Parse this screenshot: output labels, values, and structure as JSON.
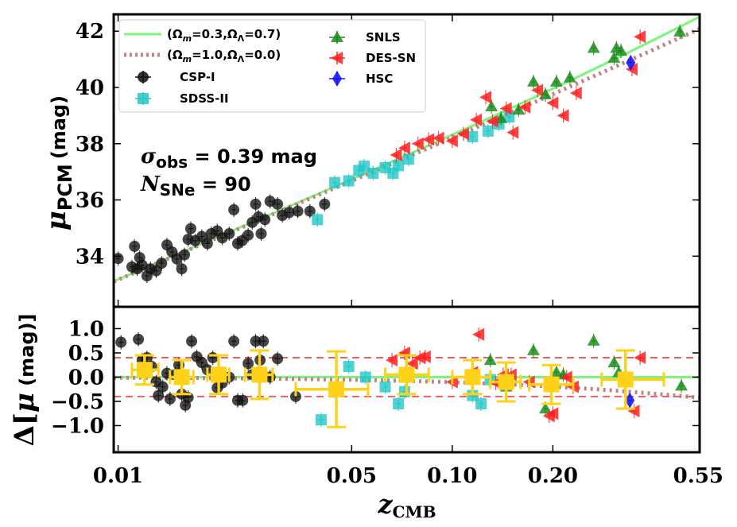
{
  "chart_data": [
    {
      "type": "scatter",
      "panel": "top",
      "title": "",
      "xlabel_main": "z",
      "xlabel_sub": "CMB",
      "ylabel_main": "μ",
      "ylabel_sub": "PCM",
      "ylabel_unit": "(mag)",
      "xscale": "log",
      "xlim": [
        0.0097,
        0.55
      ],
      "ylim": [
        32.2,
        42.6
      ],
      "yticks": [
        34,
        36,
        38,
        40,
        42
      ],
      "ytick_labels": [
        "34",
        "36",
        "38",
        "40",
        "42"
      ],
      "annotations": {
        "sigma_symbol": "σ",
        "sigma_sub": "obs",
        "sigma_rest": " = 0.39 mag",
        "n_symbol": "N",
        "n_sub": "SNe",
        "n_rest": " = 90"
      },
      "legend_placement": "top-left",
      "legend": [
        {
          "key": "lcdm",
          "label": "(Ωm=0.3,ΩΛ=0.7)",
          "main1": "(Ω",
          "sub1": "m",
          "mid": "=0.3,Ω",
          "sub2": "Λ",
          "end": "=0.7)",
          "color": "#7cf57c",
          "style": "line"
        },
        {
          "key": "eds",
          "label": "(Ωm=1.0,ΩΛ=0.0)",
          "main1": "(Ω",
          "sub1": "m",
          "mid": "=1.0,Ω",
          "sub2": "Λ",
          "end": "=0.0)",
          "color": "#c48282",
          "style": "dotted"
        },
        {
          "key": "csp",
          "label": "CSP-I",
          "color": "#111111",
          "marker": "circle"
        },
        {
          "key": "sdss",
          "label": "SDSS-II",
          "color": "#22c7c7",
          "marker": "square"
        },
        {
          "key": "snls",
          "label": "SNLS",
          "color": "#1a8a1a",
          "marker": "triangle"
        },
        {
          "key": "des",
          "label": "DES-SN",
          "color": "#ff2020",
          "marker": "left-triangle"
        },
        {
          "key": "hsc",
          "label": "HSC",
          "color": "#1a1aee",
          "marker": "diamond"
        }
      ],
      "series": [
        {
          "name": "CSP-I",
          "key": "csp",
          "points": [
            [
              0.01,
              33.92
            ],
            [
              0.011,
              33.62
            ],
            [
              0.0112,
              34.35
            ],
            [
              0.0114,
              33.55
            ],
            [
              0.0116,
              33.95
            ],
            [
              0.0118,
              33.68
            ],
            [
              0.0122,
              33.3
            ],
            [
              0.0125,
              33.55
            ],
            [
              0.013,
              33.48
            ],
            [
              0.0135,
              33.75
            ],
            [
              0.014,
              34.4
            ],
            [
              0.0145,
              34.15
            ],
            [
              0.015,
              33.9
            ],
            [
              0.0155,
              33.55
            ],
            [
              0.0158,
              34.05
            ],
            [
              0.0162,
              34.6
            ],
            [
              0.0165,
              34.98
            ],
            [
              0.017,
              34.55
            ],
            [
              0.0178,
              34.7
            ],
            [
              0.0185,
              34.45
            ],
            [
              0.019,
              34.8
            ],
            [
              0.0198,
              34.9
            ],
            [
              0.0205,
              34.65
            ],
            [
              0.0215,
              34.8
            ],
            [
              0.0222,
              35.65
            ],
            [
              0.0228,
              34.45
            ],
            [
              0.0235,
              34.55
            ],
            [
              0.0245,
              34.75
            ],
            [
              0.0252,
              35.2
            ],
            [
              0.0258,
              35.85
            ],
            [
              0.0263,
              35.4
            ],
            [
              0.0268,
              34.8
            ],
            [
              0.0275,
              35.3
            ],
            [
              0.0285,
              35.95
            ],
            [
              0.03,
              35.85
            ],
            [
              0.031,
              35.45
            ],
            [
              0.0325,
              35.55
            ],
            [
              0.0345,
              35.6
            ],
            [
              0.0375,
              35.6
            ],
            [
              0.0415,
              35.85
            ]
          ]
        },
        {
          "name": "SDSS-II",
          "key": "sdss",
          "points": [
            [
              0.0395,
              35.3
            ],
            [
              0.0445,
              36.62
            ],
            [
              0.049,
              36.68
            ],
            [
              0.0525,
              37.05
            ],
            [
              0.0545,
              37.2
            ],
            [
              0.058,
              36.95
            ],
            [
              0.063,
              37.15
            ],
            [
              0.0665,
              36.95
            ],
            [
              0.069,
              37.22
            ],
            [
              0.074,
              37.45
            ],
            [
              0.115,
              38.25
            ],
            [
              0.128,
              38.45
            ],
            [
              0.138,
              38.7
            ],
            [
              0.148,
              38.95
            ]
          ]
        },
        {
          "name": "SNLS",
          "key": "snls",
          "points": [
            [
              0.131,
              39.32
            ],
            [
              0.14,
              38.9
            ],
            [
              0.158,
              39.2
            ],
            [
              0.175,
              40.2
            ],
            [
              0.19,
              39.75
            ],
            [
              0.205,
              40.2
            ],
            [
              0.225,
              40.35
            ],
            [
              0.265,
              41.4
            ],
            [
              0.305,
              41.05
            ],
            [
              0.31,
              41.4
            ],
            [
              0.32,
              41.3
            ],
            [
              0.48,
              41.98
            ]
          ]
        },
        {
          "name": "DES-SN",
          "key": "des",
          "points": [
            [
              0.068,
              37.6
            ],
            [
              0.072,
              37.85
            ],
            [
              0.079,
              38.0
            ],
            [
              0.085,
              38.15
            ],
            [
              0.091,
              38.2
            ],
            [
              0.1,
              38.1
            ],
            [
              0.108,
              38.35
            ],
            [
              0.118,
              38.85
            ],
            [
              0.126,
              39.65
            ],
            [
              0.132,
              38.8
            ],
            [
              0.145,
              39.25
            ],
            [
              0.152,
              38.4
            ],
            [
              0.165,
              39.3
            ],
            [
              0.18,
              39.9
            ],
            [
              0.2,
              39.45
            ],
            [
              0.215,
              39.0
            ],
            [
              0.235,
              39.8
            ],
            [
              0.345,
              40.65
            ],
            [
              0.365,
              41.8
            ]
          ]
        },
        {
          "name": "HSC",
          "key": "hsc",
          "points": [
            [
              0.342,
              40.88
            ]
          ]
        }
      ],
      "models": [
        {
          "key": "lcdm",
          "omega_m": 0.3,
          "omega_l": 0.7
        },
        {
          "key": "eds",
          "omega_m": 1.0,
          "omega_l": 0.0
        }
      ]
    },
    {
      "type": "scatter",
      "panel": "bottom",
      "ylabel_delta": "Δ[",
      "ylabel_mu": "μ",
      "ylabel_unit": " (mag)]",
      "xscale": "log",
      "xlim": [
        0.0097,
        0.55
      ],
      "ylim": [
        -1.55,
        1.45
      ],
      "yticks": [
        -1.0,
        -0.5,
        0.0,
        0.5,
        1.0
      ],
      "ytick_labels": [
        "−1.0",
        "−0.5",
        "0.0",
        "0.5",
        "1.0"
      ],
      "xticks": [
        0.01,
        0.05,
        0.1,
        0.2,
        0.55
      ],
      "xtick_labels": [
        "0.01",
        "0.05",
        "0.10",
        "0.20",
        "0.55"
      ],
      "threshold_lines": [
        0.4,
        -0.4
      ],
      "threshold_color": "#f06060",
      "series": [
        {
          "name": "CSP-I",
          "key": "csp",
          "points": [
            [
              0.0102,
              0.72
            ],
            [
              0.0115,
              0.78
            ],
            [
              0.0118,
              0.35
            ],
            [
              0.0122,
              0.4
            ],
            [
              0.0126,
              0.22
            ],
            [
              0.013,
              -0.1
            ],
            [
              0.0132,
              -0.38
            ],
            [
              0.0136,
              -0.2
            ],
            [
              0.014,
              0.08
            ],
            [
              0.0143,
              -0.45
            ],
            [
              0.0148,
              0.05
            ],
            [
              0.0152,
              0.25
            ],
            [
              0.0155,
              -0.35
            ],
            [
              0.0159,
              -0.58
            ],
            [
              0.0162,
              -0.42
            ],
            [
              0.0166,
              0.74
            ],
            [
              0.0172,
              0.42
            ],
            [
              0.0178,
              0.3
            ],
            [
              0.0185,
              0.15
            ],
            [
              0.0192,
              0.4
            ],
            [
              0.0198,
              -0.22
            ],
            [
              0.0205,
              -0.12
            ],
            [
              0.0215,
              0.0
            ],
            [
              0.0222,
              0.74
            ],
            [
              0.0228,
              -0.48
            ],
            [
              0.0236,
              -0.48
            ],
            [
              0.0245,
              0.28
            ],
            [
              0.0252,
              0.05
            ],
            [
              0.0258,
              0.74
            ],
            [
              0.0266,
              0.35
            ],
            [
              0.0272,
              0.74
            ],
            [
              0.0285,
              0.0
            ],
            [
              0.03,
              0.38
            ],
            [
              0.034,
              -0.4
            ]
          ]
        },
        {
          "name": "SDSS-II",
          "key": "sdss",
          "points": [
            [
              0.0405,
              -0.88
            ],
            [
              0.049,
              0.22
            ],
            [
              0.055,
              0.0
            ],
            [
              0.063,
              -0.2
            ],
            [
              0.069,
              -0.55
            ],
            [
              0.072,
              -0.3
            ],
            [
              0.115,
              -0.38
            ],
            [
              0.122,
              -0.55
            ],
            [
              0.13,
              -0.05
            ]
          ]
        },
        {
          "name": "SNLS",
          "key": "snls",
          "points": [
            [
              0.13,
              0.35
            ],
            [
              0.145,
              -0.2
            ],
            [
              0.175,
              0.55
            ],
            [
              0.19,
              -0.65
            ],
            [
              0.205,
              0.1
            ],
            [
              0.215,
              0.05
            ],
            [
              0.265,
              0.75
            ],
            [
              0.305,
              0.3
            ],
            [
              0.315,
              0.1
            ],
            [
              0.485,
              -0.18
            ]
          ]
        },
        {
          "name": "DES-SN",
          "key": "des",
          "points": [
            [
              0.066,
              0.35
            ],
            [
              0.072,
              0.5
            ],
            [
              0.076,
              0.28
            ],
            [
              0.08,
              0.4
            ],
            [
              0.083,
              0.42
            ],
            [
              0.1,
              -0.1
            ],
            [
              0.115,
              0.1
            ],
            [
              0.12,
              0.88
            ],
            [
              0.135,
              -0.12
            ],
            [
              0.142,
              0.05
            ],
            [
              0.15,
              0.05
            ],
            [
              0.17,
              -0.1
            ],
            [
              0.195,
              -0.8
            ],
            [
              0.2,
              -0.75
            ],
            [
              0.22,
              0.0
            ],
            [
              0.23,
              -0.2
            ],
            [
              0.35,
              -0.7
            ],
            [
              0.365,
              0.4
            ]
          ]
        },
        {
          "name": "HSC",
          "key": "hsc",
          "points": [
            [
              0.34,
              -0.48
            ]
          ]
        },
        {
          "name": "binned",
          "key": "bin",
          "points": [
            [
              0.012,
              0.15,
              0.011,
              0.0132,
              0.3
            ],
            [
              0.0155,
              0.0,
              0.0143,
              0.0168,
              0.35
            ],
            [
              0.02,
              0.05,
              0.0185,
              0.0215,
              0.4
            ],
            [
              0.0265,
              0.05,
              0.024,
              0.029,
              0.5
            ],
            [
              0.045,
              -0.25,
              0.034,
              0.056,
              0.78
            ],
            [
              0.073,
              0.05,
              0.063,
              0.085,
              0.4
            ],
            [
              0.115,
              0.0,
              0.1,
              0.13,
              0.35
            ],
            [
              0.145,
              -0.1,
              0.13,
              0.16,
              0.4
            ],
            [
              0.198,
              -0.15,
              0.17,
              0.23,
              0.4
            ],
            [
              0.33,
              -0.05,
              0.28,
              0.43,
              0.6
            ]
          ]
        }
      ]
    }
  ]
}
